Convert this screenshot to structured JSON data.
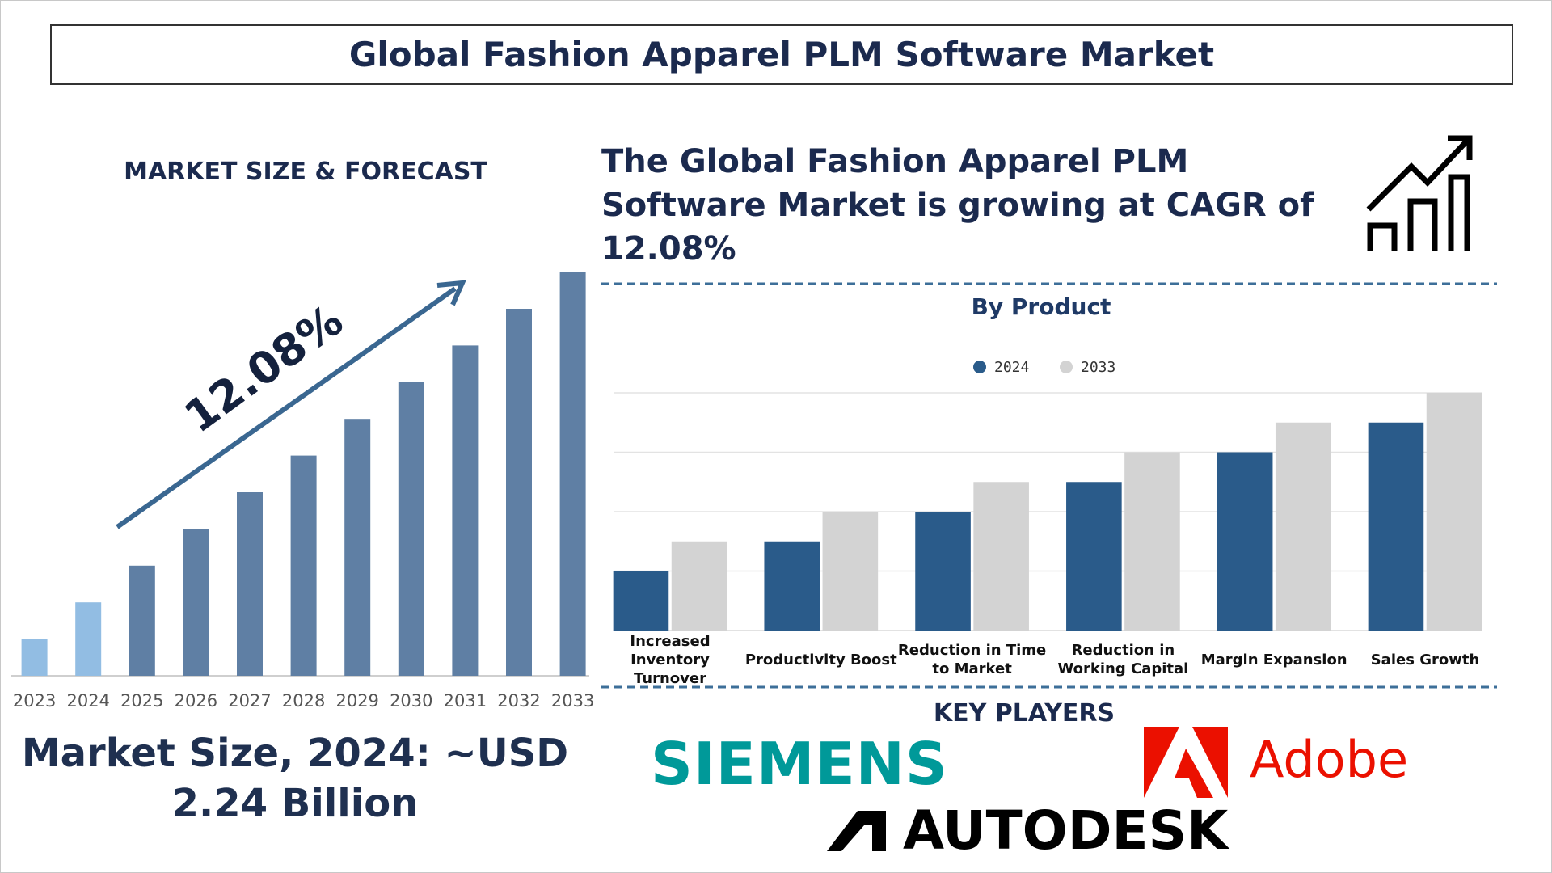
{
  "title": "Global Fashion Apparel PLM Software Market",
  "cagr_text": "The Global Fashion Apparel PLM Software Market is growing at CAGR of 12.08%",
  "market_size_text": "Market Size, 2024: ~USD 2.24 Billion",
  "key_players_heading": "KEY PLAYERS",
  "key_players": [
    "SIEMENS",
    "Adobe",
    "AUTODESK"
  ],
  "chart_data": [
    {
      "type": "bar",
      "title": "MARKET SIZE & FORECAST",
      "annotation": "12.08%",
      "categories": [
        "2023",
        "2024",
        "2025",
        "2026",
        "2027",
        "2028",
        "2029",
        "2030",
        "2031",
        "2032",
        "2033"
      ],
      "values": [
        1,
        2,
        3,
        4,
        5,
        6,
        7,
        8,
        9,
        10,
        11
      ],
      "colors": [
        "#92bde3",
        "#92bde3",
        "#5f7fa4",
        "#5f7fa4",
        "#5f7fa4",
        "#5f7fa4",
        "#5f7fa4",
        "#5f7fa4",
        "#5f7fa4",
        "#5f7fa4",
        "#5f7fa4"
      ],
      "ylim": [
        0,
        11
      ]
    },
    {
      "type": "grouped_bar",
      "title": "By Product",
      "categories": [
        "Increased Inventory Turnover",
        "Productivity Boost",
        "Reduction in Time to Market",
        "Reduction in Working Capital",
        "Margin Expansion",
        "Sales Growth"
      ],
      "series": [
        {
          "name": "2024",
          "color": "#2a5b8a",
          "values": [
            1,
            1.5,
            2,
            2.5,
            3,
            3.5
          ]
        },
        {
          "name": "2033",
          "color": "#d3d3d3",
          "values": [
            1.5,
            2,
            2.5,
            3,
            3.5,
            4
          ]
        }
      ],
      "ylim": [
        0,
        4
      ],
      "yticks": [
        1,
        2,
        3,
        4
      ],
      "grid": true
    }
  ]
}
